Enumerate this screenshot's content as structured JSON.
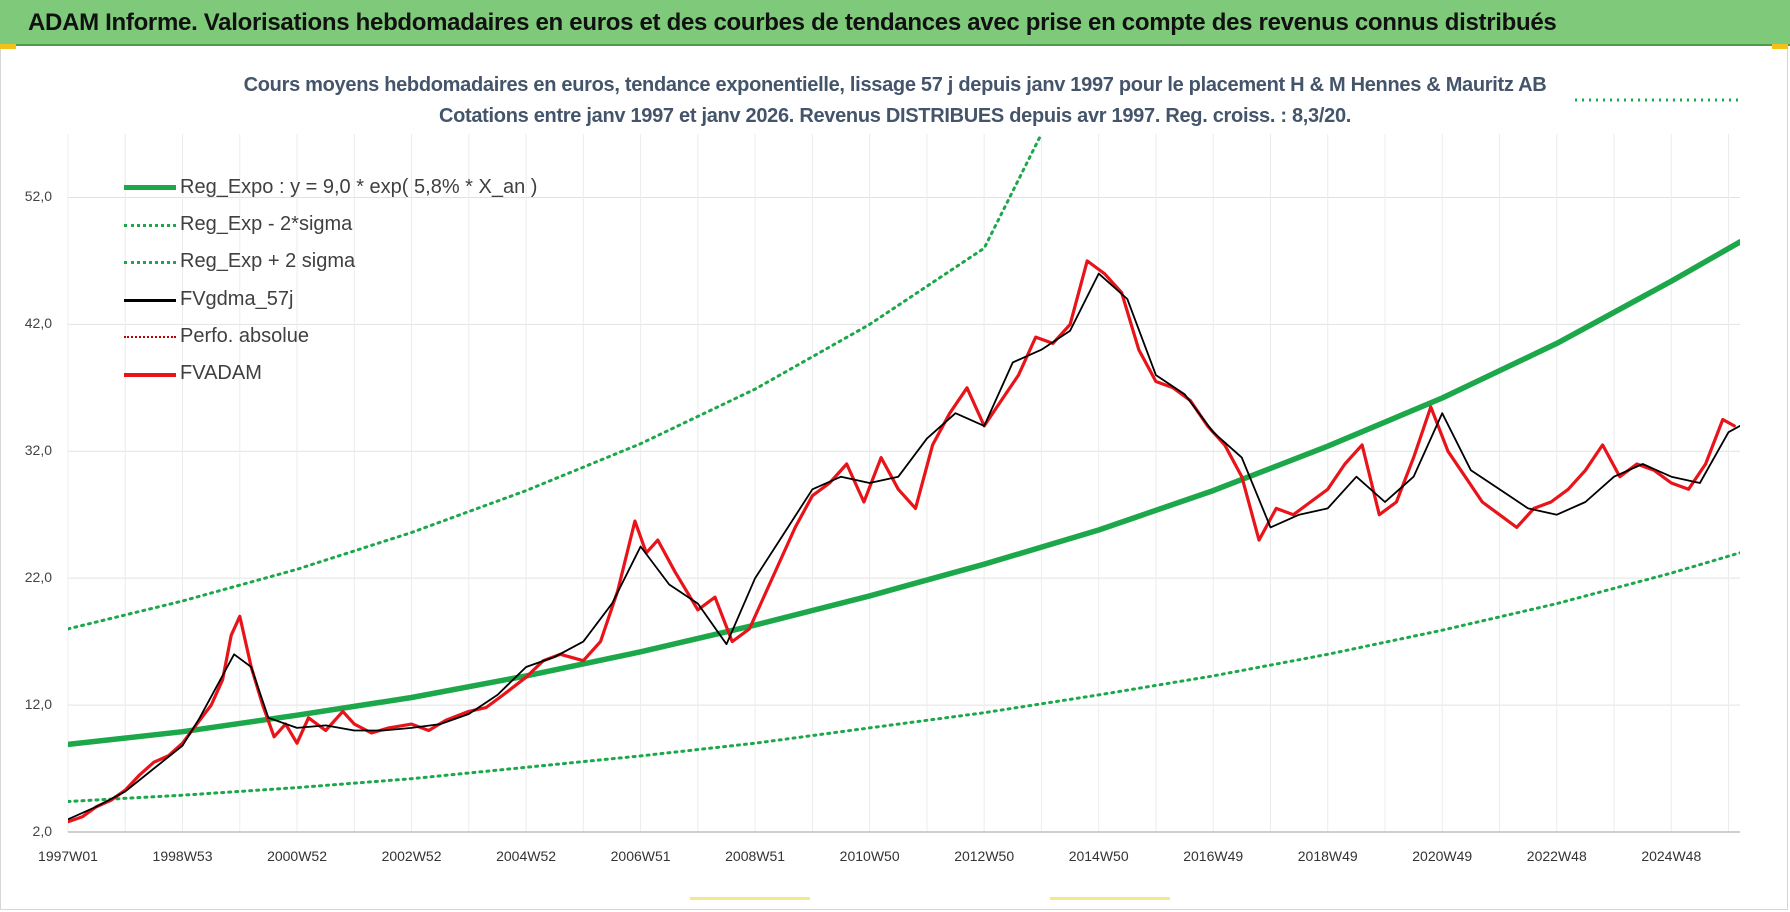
{
  "banner": {
    "title": "ADAM Informe. Valorisations hebdomadaires en euros et des courbes de tendances avec prise en compte des revenus connus distribués"
  },
  "chart_data": {
    "type": "line",
    "title": "Cours moyens hebdomadaires en euros, tendance exponentielle, lissage 57 j depuis janv 1997 pour le placement H & M Hennes & Mauritz AB",
    "subtitle": "Cotations entre janv 1997 et janv 2026. Revenus DISTRIBUES depuis avr 1997. Reg. croiss. : 8,3/20.",
    "ylim": [
      2,
      57
    ],
    "xlim": [
      1997.0,
      2026.2
    ],
    "yticks": [
      "2,0",
      "12,0",
      "22,0",
      "32,0",
      "42,0",
      "52,0"
    ],
    "ytick_values": [
      2,
      12,
      22,
      32,
      42,
      52
    ],
    "xticks": [
      "1997W01",
      "1998W53",
      "2000W52",
      "2002W52",
      "2004W52",
      "2006W51",
      "2008W51",
      "2010W50",
      "2012W50",
      "2014W50",
      "2016W49",
      "2018W49",
      "2020W49",
      "2022W48",
      "2024W48"
    ],
    "xtick_values": [
      1997.0,
      1999.0,
      2001.0,
      2003.0,
      2005.0,
      2007.0,
      2009.0,
      2011.0,
      2013.0,
      2015.0,
      2017.0,
      2019.0,
      2021.0,
      2023.0,
      2025.0
    ],
    "grid": true,
    "legend_position": "top-left",
    "series": [
      {
        "name": "Reg_Expo : y = 9,0 * exp( 5,8% *  X_an )",
        "style": "solid-thick",
        "color": "#1ca84a",
        "x": [
          1997.0,
          1999.0,
          2001.0,
          2003.0,
          2005.0,
          2007.0,
          2009.0,
          2011.0,
          2013.0,
          2015.0,
          2017.0,
          2019.0,
          2021.0,
          2023.0,
          2025.0,
          2026.2
        ],
        "values": [
          8.9,
          9.9,
          11.2,
          12.6,
          14.3,
          16.2,
          18.3,
          20.6,
          23.1,
          25.8,
          28.9,
          32.4,
          36.2,
          40.5,
          45.4,
          48.5
        ]
      },
      {
        "name": "Reg_Exp - 2*sigma",
        "style": "dotted",
        "color": "#1ca84a",
        "x": [
          1997.0,
          1999.0,
          2001.0,
          2003.0,
          2005.0,
          2007.0,
          2009.0,
          2011.0,
          2013.0,
          2015.0,
          2017.0,
          2019.0,
          2021.0,
          2023.0,
          2025.0,
          2026.2
        ],
        "values": [
          4.4,
          4.9,
          5.5,
          6.2,
          7.1,
          8.0,
          9.0,
          10.2,
          11.4,
          12.8,
          14.3,
          16.0,
          17.9,
          20.0,
          22.4,
          24.0
        ]
      },
      {
        "name": "Reg_Exp + 2 sigma",
        "style": "dotted",
        "color": "#1ca84a",
        "x": [
          1997.0,
          1999.0,
          2001.0,
          2003.0,
          2005.0,
          2007.0,
          2009.0,
          2011.0,
          2013.0,
          2014.0
        ],
        "values": [
          18.0,
          20.2,
          22.7,
          25.6,
          28.9,
          32.6,
          36.9,
          42.0,
          48.0,
          57.0
        ]
      },
      {
        "name": "FVgdma_57j",
        "style": "solid",
        "color": "#000000",
        "x": [
          1997.0,
          1997.5,
          1998.0,
          1998.5,
          1999.0,
          1999.3,
          1999.6,
          1999.9,
          2000.2,
          2000.5,
          2001.0,
          2001.5,
          2002.0,
          2002.5,
          2003.0,
          2003.5,
          2004.0,
          2004.5,
          2005.0,
          2005.5,
          2006.0,
          2006.5,
          2007.0,
          2007.5,
          2008.0,
          2008.5,
          2009.0,
          2009.5,
          2010.0,
          2010.5,
          2011.0,
          2011.5,
          2012.0,
          2012.5,
          2013.0,
          2013.5,
          2014.0,
          2014.5,
          2015.0,
          2015.5,
          2016.0,
          2016.5,
          2017.0,
          2017.5,
          2018.0,
          2018.5,
          2019.0,
          2019.5,
          2020.0,
          2020.5,
          2021.0,
          2021.5,
          2022.0,
          2022.5,
          2023.0,
          2023.5,
          2024.0,
          2024.5,
          2025.0,
          2025.5,
          2026.0,
          2026.2
        ],
        "values": [
          3.0,
          4.0,
          5.2,
          7.0,
          8.8,
          11.0,
          13.5,
          16.0,
          15.0,
          11.0,
          10.2,
          10.4,
          10.0,
          10.0,
          10.2,
          10.5,
          11.3,
          12.8,
          15.0,
          15.8,
          17.0,
          20.0,
          24.5,
          21.5,
          20.0,
          16.8,
          22.0,
          25.5,
          29.0,
          30.0,
          29.5,
          30.0,
          33.0,
          35.0,
          34.0,
          39.0,
          40.0,
          41.5,
          46.0,
          44.0,
          38.0,
          36.5,
          33.5,
          31.5,
          26.0,
          27.0,
          27.5,
          30.0,
          28.0,
          30.0,
          35.0,
          30.5,
          29.0,
          27.5,
          27.0,
          28.0,
          30.0,
          31.0,
          30.0,
          29.5,
          33.5,
          34.0
        ]
      },
      {
        "name": "Perfo. absolue",
        "style": "dotted",
        "color": "#c00000",
        "x": [],
        "values": []
      },
      {
        "name": "FVADAM",
        "style": "solid",
        "color": "#e8141a",
        "x": [
          1997.0,
          1997.25,
          1997.5,
          1997.75,
          1998.0,
          1998.25,
          1998.5,
          1998.75,
          1999.0,
          1999.25,
          1999.5,
          1999.7,
          1999.85,
          2000.0,
          2000.2,
          2000.4,
          2000.6,
          2000.8,
          2001.0,
          2001.2,
          2001.5,
          2001.8,
          2002.0,
          2002.3,
          2002.6,
          2003.0,
          2003.3,
          2003.6,
          2004.0,
          2004.3,
          2004.6,
          2005.0,
          2005.3,
          2005.6,
          2006.0,
          2006.3,
          2006.6,
          2006.9,
          2007.1,
          2007.3,
          2007.6,
          2008.0,
          2008.3,
          2008.6,
          2008.9,
          2009.1,
          2009.4,
          2009.7,
          2010.0,
          2010.3,
          2010.6,
          2010.9,
          2011.2,
          2011.5,
          2011.8,
          2012.1,
          2012.4,
          2012.7,
          2013.0,
          2013.3,
          2013.6,
          2013.9,
          2014.2,
          2014.5,
          2014.8,
          2015.1,
          2015.4,
          2015.7,
          2016.0,
          2016.3,
          2016.6,
          2016.9,
          2017.2,
          2017.5,
          2017.8,
          2018.1,
          2018.4,
          2018.7,
          2019.0,
          2019.3,
          2019.6,
          2019.9,
          2020.2,
          2020.5,
          2020.8,
          2021.1,
          2021.4,
          2021.7,
          2022.0,
          2022.3,
          2022.6,
          2022.9,
          2023.2,
          2023.5,
          2023.8,
          2024.1,
          2024.4,
          2024.7,
          2025.0,
          2025.3,
          2025.6,
          2025.9,
          2026.1
        ],
        "values": [
          2.8,
          3.2,
          4.0,
          4.5,
          5.3,
          6.5,
          7.5,
          8.0,
          9.0,
          10.5,
          12.0,
          14.0,
          17.5,
          19.0,
          15.0,
          12.0,
          9.5,
          10.5,
          9.0,
          11.0,
          10.0,
          11.5,
          10.5,
          9.8,
          10.2,
          10.5,
          10.0,
          10.8,
          11.5,
          11.8,
          12.8,
          14.2,
          15.5,
          16.0,
          15.5,
          17.0,
          21.0,
          26.5,
          24.0,
          25.0,
          22.5,
          19.5,
          20.5,
          17.0,
          18.0,
          20.0,
          23.0,
          26.0,
          28.5,
          29.5,
          31.0,
          28.0,
          31.5,
          29.0,
          27.5,
          32.5,
          35.0,
          37.0,
          34.0,
          36.0,
          38.0,
          41.0,
          40.5,
          42.0,
          47.0,
          46.0,
          44.5,
          40.0,
          37.5,
          37.0,
          36.0,
          34.0,
          32.5,
          30.0,
          25.0,
          27.5,
          27.0,
          28.0,
          29.0,
          31.0,
          32.5,
          27.0,
          28.0,
          31.5,
          35.5,
          32.0,
          30.0,
          28.0,
          27.0,
          26.0,
          27.5,
          28.0,
          29.0,
          30.5,
          32.5,
          30.0,
          31.0,
          30.5,
          29.5,
          29.0,
          31.0,
          34.5,
          34.0
        ]
      }
    ]
  }
}
